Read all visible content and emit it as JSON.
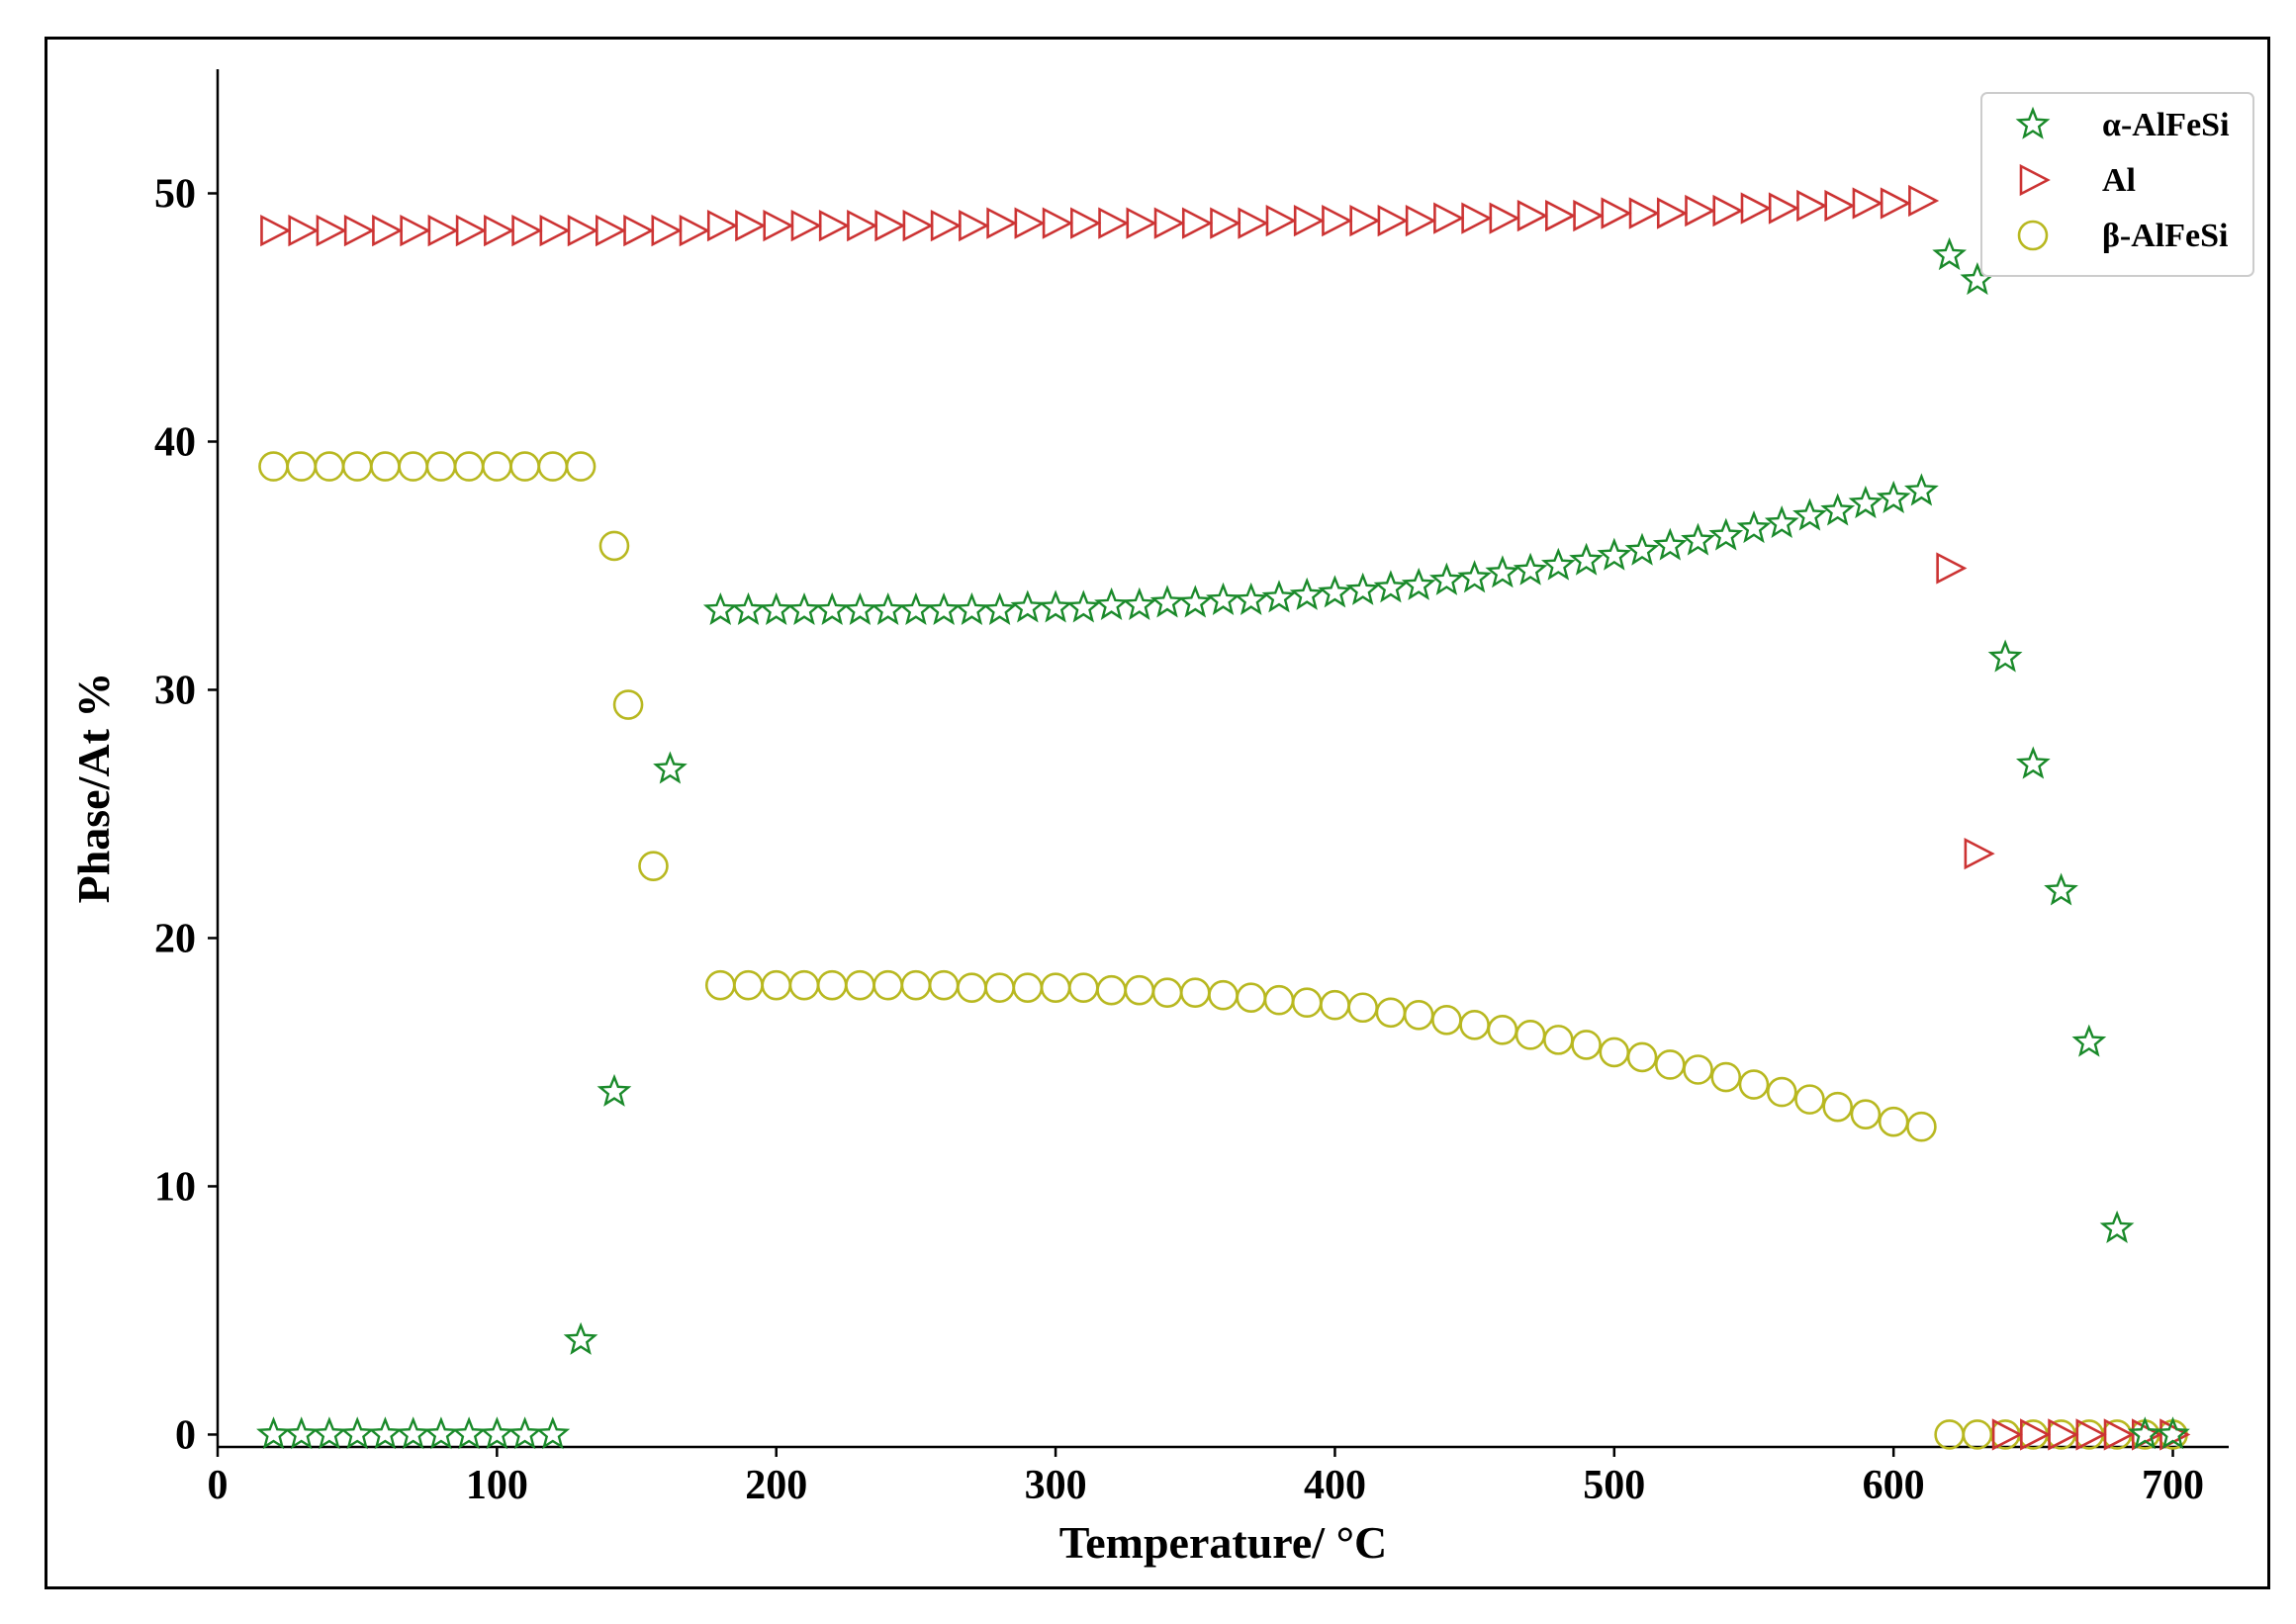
{
  "chart_data": {
    "type": "scatter",
    "title": "",
    "xlabel": "Temperature/ °C",
    "ylabel": "Phase/At %",
    "xlim": [
      0,
      720
    ],
    "ylim": [
      -0.5,
      55
    ],
    "xticks": [
      0,
      100,
      200,
      300,
      400,
      500,
      600,
      700
    ],
    "yticks": [
      0,
      10,
      20,
      30,
      40,
      50
    ],
    "grid": false,
    "legend_position": "top-right",
    "series": [
      {
        "name": "α-AlFeSi",
        "marker": "star",
        "color": "#1a8a2a",
        "points": [
          [
            20,
            0
          ],
          [
            30,
            0
          ],
          [
            40,
            0
          ],
          [
            50,
            0
          ],
          [
            60,
            0
          ],
          [
            70,
            0
          ],
          [
            80,
            0
          ],
          [
            90,
            0
          ],
          [
            100,
            0
          ],
          [
            110,
            0
          ],
          [
            120,
            0
          ],
          [
            130,
            3.8
          ],
          [
            142,
            13.8
          ],
          [
            162,
            26.8
          ],
          [
            180,
            33.2
          ],
          [
            190,
            33.2
          ],
          [
            200,
            33.2
          ],
          [
            210,
            33.2
          ],
          [
            220,
            33.2
          ],
          [
            230,
            33.2
          ],
          [
            240,
            33.2
          ],
          [
            250,
            33.2
          ],
          [
            260,
            33.2
          ],
          [
            270,
            33.2
          ],
          [
            280,
            33.2
          ],
          [
            290,
            33.3
          ],
          [
            300,
            33.3
          ],
          [
            310,
            33.3
          ],
          [
            320,
            33.4
          ],
          [
            330,
            33.4
          ],
          [
            340,
            33.5
          ],
          [
            350,
            33.5
          ],
          [
            360,
            33.6
          ],
          [
            370,
            33.6
          ],
          [
            380,
            33.7
          ],
          [
            390,
            33.8
          ],
          [
            400,
            33.9
          ],
          [
            410,
            34.0
          ],
          [
            420,
            34.1
          ],
          [
            430,
            34.2
          ],
          [
            440,
            34.4
          ],
          [
            450,
            34.5
          ],
          [
            460,
            34.7
          ],
          [
            470,
            34.8
          ],
          [
            480,
            35.0
          ],
          [
            490,
            35.2
          ],
          [
            500,
            35.4
          ],
          [
            510,
            35.6
          ],
          [
            520,
            35.8
          ],
          [
            530,
            36.0
          ],
          [
            540,
            36.2
          ],
          [
            550,
            36.5
          ],
          [
            560,
            36.7
          ],
          [
            570,
            37.0
          ],
          [
            580,
            37.2
          ],
          [
            590,
            37.5
          ],
          [
            600,
            37.7
          ],
          [
            610,
            38.0
          ],
          [
            620,
            47.5
          ],
          [
            630,
            46.5
          ],
          [
            640,
            31.3
          ],
          [
            650,
            27.0
          ],
          [
            660,
            21.9
          ],
          [
            670,
            15.8
          ],
          [
            680,
            8.3
          ],
          [
            690,
            0
          ],
          [
            700,
            0
          ]
        ]
      },
      {
        "name": "Al",
        "marker": "triangle-right",
        "color": "#cc3333",
        "points": [
          [
            20,
            48.5
          ],
          [
            30,
            48.5
          ],
          [
            40,
            48.5
          ],
          [
            50,
            48.5
          ],
          [
            60,
            48.5
          ],
          [
            70,
            48.5
          ],
          [
            80,
            48.5
          ],
          [
            90,
            48.5
          ],
          [
            100,
            48.5
          ],
          [
            110,
            48.5
          ],
          [
            120,
            48.5
          ],
          [
            130,
            48.5
          ],
          [
            140,
            48.5
          ],
          [
            150,
            48.5
          ],
          [
            160,
            48.5
          ],
          [
            170,
            48.5
          ],
          [
            180,
            48.7
          ],
          [
            190,
            48.7
          ],
          [
            200,
            48.7
          ],
          [
            210,
            48.7
          ],
          [
            220,
            48.7
          ],
          [
            230,
            48.7
          ],
          [
            240,
            48.7
          ],
          [
            250,
            48.7
          ],
          [
            260,
            48.7
          ],
          [
            270,
            48.7
          ],
          [
            280,
            48.8
          ],
          [
            290,
            48.8
          ],
          [
            300,
            48.8
          ],
          [
            310,
            48.8
          ],
          [
            320,
            48.8
          ],
          [
            330,
            48.8
          ],
          [
            340,
            48.8
          ],
          [
            350,
            48.8
          ],
          [
            360,
            48.8
          ],
          [
            370,
            48.8
          ],
          [
            380,
            48.9
          ],
          [
            390,
            48.9
          ],
          [
            400,
            48.9
          ],
          [
            410,
            48.9
          ],
          [
            420,
            48.9
          ],
          [
            430,
            48.9
          ],
          [
            440,
            49.0
          ],
          [
            450,
            49.0
          ],
          [
            460,
            49.0
          ],
          [
            470,
            49.1
          ],
          [
            480,
            49.1
          ],
          [
            490,
            49.1
          ],
          [
            500,
            49.2
          ],
          [
            510,
            49.2
          ],
          [
            520,
            49.2
          ],
          [
            530,
            49.3
          ],
          [
            540,
            49.3
          ],
          [
            550,
            49.4
          ],
          [
            560,
            49.4
          ],
          [
            570,
            49.5
          ],
          [
            580,
            49.5
          ],
          [
            590,
            49.6
          ],
          [
            600,
            49.6
          ],
          [
            610,
            49.7
          ],
          [
            620,
            34.9
          ],
          [
            630,
            23.4
          ],
          [
            640,
            0
          ],
          [
            650,
            0
          ],
          [
            660,
            0
          ],
          [
            670,
            0
          ],
          [
            680,
            0
          ],
          [
            690,
            0
          ],
          [
            700,
            0
          ]
        ]
      },
      {
        "name": "β-AlFeSi",
        "marker": "circle",
        "color": "#b8b820",
        "points": [
          [
            20,
            39.0
          ],
          [
            30,
            39.0
          ],
          [
            40,
            39.0
          ],
          [
            50,
            39.0
          ],
          [
            60,
            39.0
          ],
          [
            70,
            39.0
          ],
          [
            80,
            39.0
          ],
          [
            90,
            39.0
          ],
          [
            100,
            39.0
          ],
          [
            110,
            39.0
          ],
          [
            120,
            39.0
          ],
          [
            130,
            39.0
          ],
          [
            142,
            35.8
          ],
          [
            147,
            29.4
          ],
          [
            156,
            22.9
          ],
          [
            180,
            18.1
          ],
          [
            190,
            18.1
          ],
          [
            200,
            18.1
          ],
          [
            210,
            18.1
          ],
          [
            220,
            18.1
          ],
          [
            230,
            18.1
          ],
          [
            240,
            18.1
          ],
          [
            250,
            18.1
          ],
          [
            260,
            18.1
          ],
          [
            270,
            18.0
          ],
          [
            280,
            18.0
          ],
          [
            290,
            18.0
          ],
          [
            300,
            18.0
          ],
          [
            310,
            18.0
          ],
          [
            320,
            17.9
          ],
          [
            330,
            17.9
          ],
          [
            340,
            17.8
          ],
          [
            350,
            17.8
          ],
          [
            360,
            17.7
          ],
          [
            370,
            17.6
          ],
          [
            380,
            17.5
          ],
          [
            390,
            17.4
          ],
          [
            400,
            17.3
          ],
          [
            410,
            17.2
          ],
          [
            420,
            17.0
          ],
          [
            430,
            16.9
          ],
          [
            440,
            16.7
          ],
          [
            450,
            16.5
          ],
          [
            460,
            16.3
          ],
          [
            470,
            16.1
          ],
          [
            480,
            15.9
          ],
          [
            490,
            15.7
          ],
          [
            500,
            15.4
          ],
          [
            510,
            15.2
          ],
          [
            520,
            14.9
          ],
          [
            530,
            14.7
          ],
          [
            540,
            14.4
          ],
          [
            550,
            14.1
          ],
          [
            560,
            13.8
          ],
          [
            570,
            13.5
          ],
          [
            580,
            13.2
          ],
          [
            590,
            12.9
          ],
          [
            600,
            12.6
          ],
          [
            610,
            12.4
          ],
          [
            620,
            0
          ],
          [
            630,
            0
          ],
          [
            640,
            0
          ],
          [
            650,
            0
          ],
          [
            660,
            0
          ],
          [
            670,
            0
          ],
          [
            680,
            0
          ],
          [
            690,
            0
          ],
          [
            700,
            0
          ]
        ]
      }
    ]
  }
}
